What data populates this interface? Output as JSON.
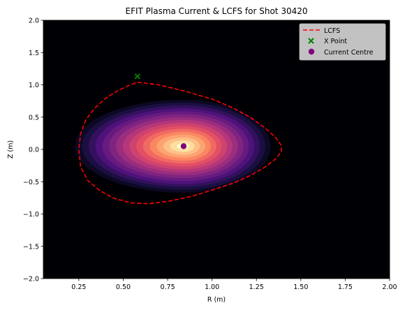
{
  "chart_data": {
    "type": "heatmap",
    "title": "EFIT Plasma Current & LCFS for Shot 30420",
    "xlabel": "R (m)",
    "ylabel": "Z (m)",
    "xlim": [
      0.05,
      2.0
    ],
    "ylim": [
      -2.0,
      2.0
    ],
    "xticks": [
      0.25,
      0.5,
      0.75,
      1.0,
      1.25,
      1.5,
      1.75,
      2.0
    ],
    "xtick_labels": [
      "0.25",
      "0.50",
      "0.75",
      "1.00",
      "1.25",
      "1.50",
      "1.75",
      "2.00"
    ],
    "yticks": [
      -2.0,
      -1.5,
      -1.0,
      -0.5,
      0.0,
      0.5,
      1.0,
      1.5,
      2.0
    ],
    "ytick_labels": [
      "−2.0",
      "−1.5",
      "−1.0",
      "−0.5",
      "0.0",
      "0.5",
      "1.0",
      "1.5",
      "2.0"
    ],
    "grid": false,
    "legend_position": "top-right",
    "colormap": "magma",
    "background_color": "#000004",
    "current_density": {
      "center": [
        0.84,
        0.05
      ],
      "radius_r_inner": 0.61,
      "radius_r_outer": 0.49,
      "radius_z": 0.72,
      "levels": 16
    },
    "series": [
      {
        "name": "LCFS",
        "kind": "line",
        "style": "dashed",
        "color": "#ff0000",
        "x": [
          0.58,
          0.7,
          0.85,
          1.0,
          1.12,
          1.22,
          1.3,
          1.36,
          1.39,
          1.39,
          1.36,
          1.3,
          1.22,
          1.12,
          1.0,
          0.88,
          0.76,
          0.65,
          0.55,
          0.45,
          0.37,
          0.3,
          0.26,
          0.25,
          0.26,
          0.29,
          0.34,
          0.4,
          0.47,
          0.54,
          0.58
        ],
        "y": [
          1.04,
          1.0,
          0.9,
          0.78,
          0.64,
          0.49,
          0.33,
          0.18,
          0.06,
          -0.04,
          -0.14,
          -0.27,
          -0.4,
          -0.52,
          -0.63,
          -0.73,
          -0.8,
          -0.84,
          -0.83,
          -0.76,
          -0.64,
          -0.48,
          -0.27,
          0.0,
          0.24,
          0.46,
          0.64,
          0.79,
          0.91,
          1.0,
          1.04
        ]
      },
      {
        "name": "X Point",
        "kind": "scatter",
        "marker": "x",
        "color": "#008000",
        "x": [
          0.58
        ],
        "y": [
          1.13
        ]
      },
      {
        "name": "Current Centre",
        "kind": "scatter",
        "marker": "circle",
        "color": "#800080",
        "x": [
          0.84
        ],
        "y": [
          0.05
        ]
      }
    ]
  }
}
